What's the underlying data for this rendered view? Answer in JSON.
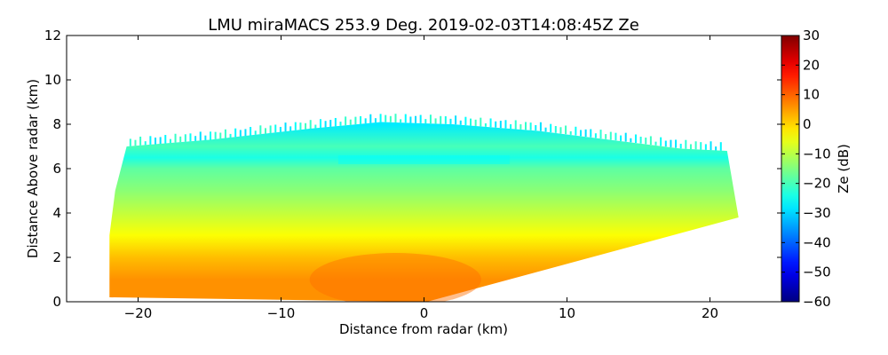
{
  "chart_data": {
    "type": "heatmap",
    "title": "LMU miraMACS 253.9 Deg. 2019-02-03T14:08:45Z  Ze",
    "xlabel": "Distance from radar (km)",
    "ylabel": "Distance Above radar  (km)",
    "xlim": [
      -25,
      25
    ],
    "ylim": [
      0,
      12
    ],
    "x_ticks": [
      -20,
      -10,
      0,
      10,
      20
    ],
    "x_tick_labels": [
      "−20",
      "−10",
      "0",
      "10",
      "20"
    ],
    "y_ticks": [
      0,
      2,
      4,
      6,
      8,
      10,
      12
    ],
    "y_tick_labels": [
      "0",
      "2",
      "4",
      "6",
      "8",
      "10",
      "12"
    ],
    "colorbar": {
      "label": "Ze (dB)",
      "range": [
        -60,
        30
      ],
      "ticks": [
        30,
        20,
        10,
        0,
        -10,
        -20,
        -30,
        -40,
        -50,
        -60
      ],
      "tick_labels": [
        "30",
        "20",
        "10",
        "0",
        "−10",
        "−20",
        "−30",
        "−40",
        "−50",
        "−60"
      ],
      "colormap": "jet"
    },
    "echo_region": {
      "left_edge_km": -22,
      "right_edge_km": 22,
      "top_height_km": 8.1,
      "right_bottom_height_km": 3.8,
      "right_top_height_km": 6.8,
      "left_top_height_km": 7.0
    },
    "reflectivity_profile": [
      {
        "height_km": 0.0,
        "ze_db": 6
      },
      {
        "height_km": 1.0,
        "ze_db": 6
      },
      {
        "height_km": 2.0,
        "ze_db": 2
      },
      {
        "height_km": 3.0,
        "ze_db": -4
      },
      {
        "height_km": 4.0,
        "ze_db": -9
      },
      {
        "height_km": 5.0,
        "ze_db": -14
      },
      {
        "height_km": 6.0,
        "ze_db": -18
      },
      {
        "height_km": 6.5,
        "ze_db": -24
      },
      {
        "height_km": 7.0,
        "ze_db": -20
      },
      {
        "height_km": 8.0,
        "ze_db": -28
      }
    ]
  }
}
